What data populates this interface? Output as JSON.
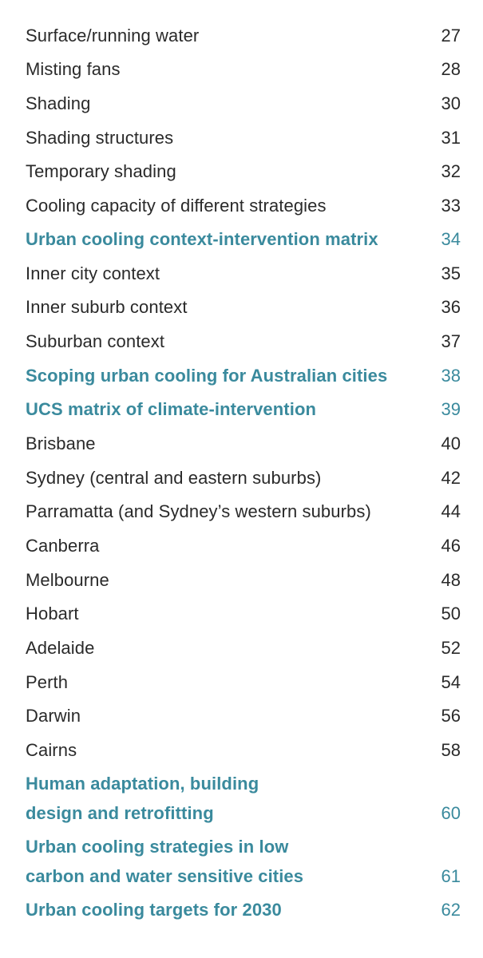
{
  "entries": [
    {
      "title": "Surface/running water",
      "page": "27"
    },
    {
      "title": "Misting fans",
      "page": "28"
    },
    {
      "title": "Shading",
      "page": "30"
    },
    {
      "title": "Shading structures",
      "page": "31"
    },
    {
      "title": "Temporary shading",
      "page": "32"
    },
    {
      "title": "Cooling capacity of different strategies",
      "page": "33"
    },
    {
      "title": "Urban cooling context-intervention matrix",
      "page": "34"
    },
    {
      "title": "Inner city context",
      "page": "35"
    },
    {
      "title": "Inner suburb context",
      "page": "36"
    },
    {
      "title": "Suburban context",
      "page": "37"
    },
    {
      "title": "Scoping urban cooling for Australian cities",
      "page": "38"
    },
    {
      "title": "UCS matrix of climate-intervention",
      "page": "39"
    },
    {
      "title": "Brisbane",
      "page": "40"
    },
    {
      "title": "Sydney (central and eastern suburbs)",
      "page": "42"
    },
    {
      "title": "Parramatta (and Sydney’s western suburbs)",
      "page": "44"
    },
    {
      "title": "Canberra",
      "page": "46"
    },
    {
      "title": "Melbourne",
      "page": "48"
    },
    {
      "title": "Hobart",
      "page": "50"
    },
    {
      "title": "Adelaide",
      "page": "52"
    },
    {
      "title": "Perth",
      "page": "54"
    },
    {
      "title": "Darwin",
      "page": "56"
    },
    {
      "title": "Cairns",
      "page": "58"
    },
    {
      "title_line1": "Human adaptation, building",
      "title_line2": "design and retrofitting",
      "page": "60"
    },
    {
      "title_line1": "Urban cooling strategies in low",
      "title_line2": "carbon and water sensitive cities",
      "page": "61"
    },
    {
      "title": "Urban cooling targets for 2030",
      "page": "62"
    }
  ],
  "colors": {
    "text": "#2a2a2a",
    "section": "#3a8a9d"
  }
}
